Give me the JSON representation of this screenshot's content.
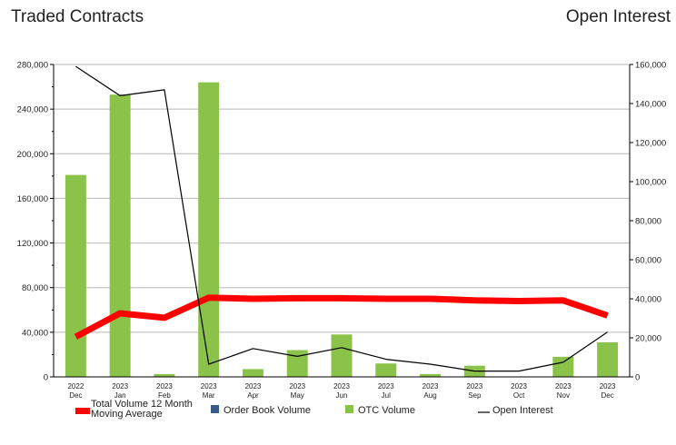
{
  "header": {
    "left_title": "Traded Contracts",
    "right_title": "Open Interest"
  },
  "chart_data": {
    "type": "bar",
    "categories": [
      [
        "2022",
        "Dec"
      ],
      [
        "2023",
        "Jan"
      ],
      [
        "2023",
        "Feb"
      ],
      [
        "2023",
        "Mar"
      ],
      [
        "2023",
        "Apr"
      ],
      [
        "2023",
        "May"
      ],
      [
        "2023",
        "Jun"
      ],
      [
        "2023",
        "Jul"
      ],
      [
        "2023",
        "Aug"
      ],
      [
        "2023",
        "Sep"
      ],
      [
        "2023",
        "Oct"
      ],
      [
        "2023",
        "Nov"
      ],
      [
        "2023",
        "Dec"
      ]
    ],
    "y_left": {
      "ylim": [
        0,
        280000
      ],
      "ticks": [
        0,
        40000,
        80000,
        120000,
        160000,
        200000,
        240000,
        280000
      ],
      "tick_labels": [
        "0",
        "40,000",
        "80,000",
        "120,000",
        "160,000",
        "200,000",
        "240,000",
        "280,000"
      ]
    },
    "y_right": {
      "ylim": [
        0,
        160000
      ],
      "ticks": [
        0,
        20000,
        40000,
        60000,
        80000,
        100000,
        120000,
        140000,
        160000
      ],
      "tick_labels": [
        "0",
        "20,000",
        "40,000",
        "60,000",
        "80,000",
        "100,000",
        "120,000",
        "140,000",
        "160,000"
      ]
    },
    "series": [
      {
        "name": "Total Volume 12 Month Moving Average",
        "legend_lines": [
          "Total Volume 12 Month",
          "Moving Average"
        ],
        "kind": "line",
        "axis": "left",
        "color": "#ff0000",
        "values": [
          36000,
          57000,
          53000,
          71000,
          70000,
          70500,
          70500,
          70000,
          70000,
          68500,
          68000,
          68500,
          55000
        ]
      },
      {
        "name": "Order Book Volume",
        "legend_lines": [
          "Order Book Volume"
        ],
        "kind": "bar",
        "axis": "left",
        "color": "#3a5a8c",
        "values": [
          0,
          0,
          0,
          0,
          0,
          0,
          0,
          0,
          0,
          0,
          0,
          0,
          0
        ]
      },
      {
        "name": "OTC Volume",
        "legend_lines": [
          "OTC Volume"
        ],
        "kind": "bar",
        "axis": "left",
        "color": "#8bc34a",
        "values": [
          181000,
          253000,
          2500,
          264000,
          7000,
          24000,
          38000,
          12000,
          2500,
          10000,
          0,
          18000,
          31000
        ]
      },
      {
        "name": "Open Interest",
        "legend_lines": [
          "Open Interest"
        ],
        "kind": "line",
        "axis": "right",
        "color": "#000000",
        "values": [
          159000,
          144000,
          147000,
          6500,
          14500,
          10500,
          15000,
          9000,
          6500,
          3000,
          3000,
          7500,
          23000
        ]
      }
    ],
    "grid": true,
    "legend_position": "bottom"
  }
}
